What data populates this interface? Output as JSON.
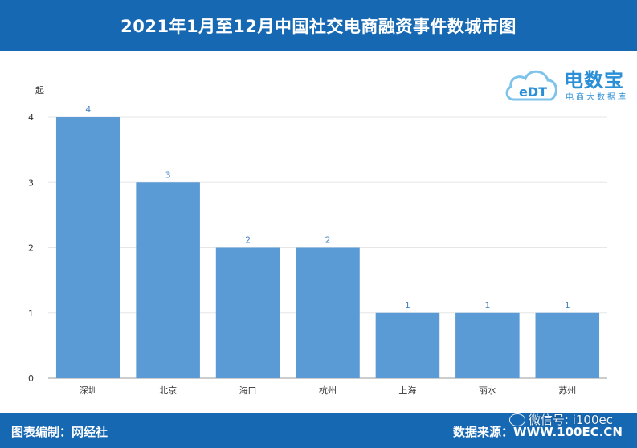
{
  "header": {
    "title": "2021年1月至12月中国社交电商融资事件数城市图"
  },
  "footer": {
    "left": "图表编制：网经社",
    "right": "数据来源：WWW.100EC.CN",
    "wechat": "微信号: i100ec"
  },
  "logo": {
    "cloud_text": "eDT",
    "brand": "电数宝",
    "sub": "电商大数据库"
  },
  "colors": {
    "bar": "#5b9bd5",
    "header": "#1668b3",
    "label": "#4a86c5"
  },
  "chart_data": {
    "type": "bar",
    "categories": [
      "深圳",
      "北京",
      "海口",
      "杭州",
      "上海",
      "丽水",
      "苏州"
    ],
    "values": [
      4,
      3,
      2,
      2,
      1,
      1,
      1
    ],
    "title": "2021年1月至12月中国社交电商融资事件数城市图",
    "xlabel": "",
    "ylabel": "起",
    "ylim": [
      0,
      4
    ],
    "yticks": [
      0,
      1,
      2,
      3,
      4
    ],
    "grid": true,
    "legend": "none"
  }
}
